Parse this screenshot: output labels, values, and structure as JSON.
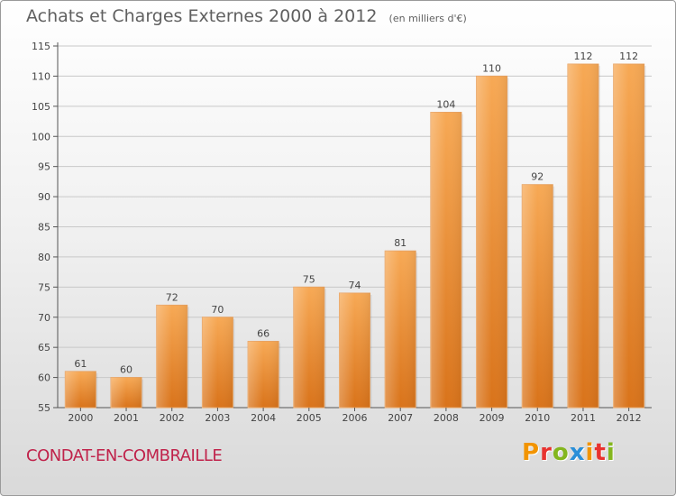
{
  "header": {
    "title": "Achats et Charges Externes 2000 à 2012",
    "subtitle": "(en milliers d'€)"
  },
  "footer": {
    "city": "CONDAT-EN-COMBRAILLE",
    "brand": "Proxiti",
    "brand_letter_colors": [
      "#f29400",
      "#e8322f",
      "#84b61e",
      "#2a8fd8",
      "#f29400",
      "#e8322f",
      "#84b61e"
    ]
  },
  "chart_data": {
    "type": "bar",
    "title": "Achats et Charges Externes 2000 à 2012",
    "subtitle": "(en milliers d'€)",
    "categories": [
      "2000",
      "2001",
      "2002",
      "2003",
      "2004",
      "2005",
      "2006",
      "2007",
      "2008",
      "2009",
      "2010",
      "2011",
      "2012"
    ],
    "values": [
      61,
      60,
      72,
      70,
      66,
      75,
      74,
      81,
      104,
      110,
      92,
      112,
      112
    ],
    "ylim": [
      55,
      115
    ],
    "yticks": [
      55,
      60,
      65,
      70,
      75,
      80,
      85,
      90,
      95,
      100,
      105,
      110,
      115
    ],
    "grid": true,
    "bar_color": "#f5a04a",
    "grid_color": "#c8c8c8"
  }
}
